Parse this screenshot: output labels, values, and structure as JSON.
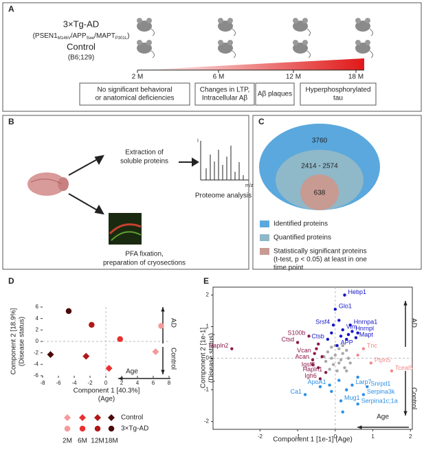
{
  "panel_a": {
    "label": "A",
    "strain": "3×Tg-AD",
    "genotype": [
      "(PSEN1",
      "M146V",
      "/APP",
      "Swe",
      "/MAPT",
      "P301L",
      ")"
    ],
    "control": "Control",
    "control_background": "(B6;129)",
    "timepoints": [
      "2 M",
      "6 M",
      "12 M",
      "18 M"
    ],
    "phenotypes": [
      [
        "No significant behavioral",
        "or anatomical deficiencies"
      ],
      [
        "Changes in LTP,",
        "Intracellular Aβ"
      ],
      [
        "Aβ plaques"
      ],
      [
        "Hyperphosphorylated",
        "tau"
      ]
    ]
  },
  "panel_b": {
    "label": "B",
    "extraction": [
      "Extraction of",
      "soluble proteins"
    ],
    "spectrum_y": "I",
    "spectrum_x": "m/z",
    "proteome": "Proteome analysis",
    "fixation": [
      "PFA fixation,",
      "preparation of cryosections"
    ]
  },
  "panel_c": {
    "label": "C",
    "identified_count": "3760",
    "quantified_count": "2414 - 2574",
    "significant_count": "638",
    "legend": [
      [
        "Identified proteins"
      ],
      [
        "Quantified proteins"
      ],
      [
        "Statistically significant proteins",
        "(t-test, p < 0.05) at least in one",
        "time point"
      ]
    ],
    "colors": [
      "#5aa8dd",
      "#8fb8c8",
      "#c79a92"
    ]
  },
  "chart_data": [
    {
      "type": "scatter",
      "label": "D",
      "xlabel": [
        "Component 1 [40.3%]",
        "(Age)"
      ],
      "ylabel": [
        "Component 2 [18.9%]",
        "(Disease status)"
      ],
      "xlim": [
        -8,
        8
      ],
      "ylim": [
        -6,
        6
      ],
      "xticks": [
        -8,
        -6,
        -4,
        -2,
        0,
        2,
        4,
        6,
        8
      ],
      "yticks": [
        -6,
        -4,
        -2,
        0,
        2,
        4,
        6
      ],
      "ages": [
        "2M",
        "6M",
        "12M",
        "18M"
      ],
      "arrow_up": "AD",
      "arrow_down": "Control",
      "arrow_left": "Age",
      "series": [
        {
          "name": "Control",
          "marker": "diamond",
          "colors": [
            "#f59a9a",
            "#e83030",
            "#b01818",
            "#4a0808"
          ],
          "x": [
            6.3,
            0.4,
            -2.5,
            -7
          ],
          "y": [
            -1.8,
            -4.7,
            -2.6,
            -2.3
          ]
        },
        {
          "name": "3×Tg-AD",
          "marker": "circle",
          "colors": [
            "#f59a9a",
            "#e83030",
            "#b01818",
            "#4a0808"
          ],
          "x": [
            7,
            1.8,
            -1.8,
            -4.7
          ],
          "y": [
            2.7,
            0.4,
            2.9,
            5.3
          ]
        }
      ]
    },
    {
      "type": "scatter",
      "label": "E",
      "xlabel": [
        "Component 1 [1e-1] (Age)"
      ],
      "ylabel": [
        "Component 2 [1e-1]",
        "(Disease status)"
      ],
      "xlim": [
        -3.25,
        2.05
      ],
      "ylim": [
        -2.25,
        2.25
      ],
      "xticks": [
        -2,
        -1,
        0,
        1,
        2
      ],
      "yticks": [
        -2,
        -1,
        0,
        1,
        2
      ],
      "arrow_up": "AD",
      "arrow_down": "Control",
      "arrow_left": "Age",
      "series": [
        {
          "color": "#a8a8a8",
          "x": [
            -0.2,
            -0.1,
            0,
            0.1,
            0.2,
            0.3,
            -0.25,
            -0.05,
            0.15,
            0.35,
            -0.15,
            0.05,
            0.25,
            0.4,
            -0.3,
            0,
            0.2,
            -0.1,
            0.1,
            0.3
          ],
          "y": [
            0.2,
            0.35,
            0.1,
            0.3,
            0.15,
            0.25,
            -0.1,
            -0.2,
            -0.05,
            0,
            -0.35,
            -0.4,
            -0.3,
            -0.15,
            0.05,
            0.4,
            0.4,
            0,
            -0.15,
            -0.4
          ],
          "labels": [
            null,
            null,
            null,
            null,
            null,
            null,
            null,
            null,
            null,
            null,
            null,
            null,
            null,
            null,
            null,
            null,
            null,
            null,
            null,
            null
          ]
        },
        {
          "color": "#1515c8",
          "x": [
            0.25,
            0,
            -0.05,
            0.2,
            0.4,
            0.45,
            0.55,
            -0.2,
            0.05,
            0.15,
            0.3,
            -0.1,
            0.35,
            0.1,
            0.6
          ],
          "y": [
            2,
            1.55,
            1.05,
            0.9,
            1.05,
            0.85,
            0.65,
            0.6,
            0.4,
            0.7,
            0.6,
            0.8,
            0.75,
            1.2,
            0.8
          ],
          "labels": [
            "Hebp1",
            "Glo1",
            "Srsf4",
            "Vim",
            "Hnrnpa1",
            "Hnrnpl",
            "Mapt",
            "Ctsb",
            "APP",
            null,
            null,
            null,
            null,
            null,
            null
          ]
        },
        {
          "color": "#8b1a4a",
          "x": [
            -0.7,
            -1,
            -2.75,
            -0.55,
            -0.6,
            -0.45,
            -0.25,
            -0.4,
            -0.5,
            -0.35,
            -0.6,
            -0.45
          ],
          "y": [
            0.7,
            0.5,
            0.3,
            0.15,
            -0.05,
            -0.3,
            -0.45,
            -0.65,
            0.3,
            0.05,
            -0.2,
            0.45
          ],
          "labels": [
            "S100b",
            "Ctsd",
            "Hapln2",
            "Vcan",
            "Acan",
            "Igsf8",
            "Hapln1",
            "Igh6",
            null,
            null,
            null,
            null
          ]
        },
        {
          "color": "#f28a8a",
          "x": [
            0.75,
            0.95,
            1.5,
            0.6
          ],
          "y": [
            0.3,
            -0.15,
            -0.4,
            0.1
          ],
          "labels": [
            "Tnc",
            "Ptpn5",
            "Tceal5",
            null
          ]
        },
        {
          "color": "#2b8fe6",
          "x": [
            -0.15,
            0.45,
            0.85,
            0.75,
            0.6,
            0.15,
            -0.8,
            0.1,
            0.3,
            -0.4,
            0.6,
            0.2,
            -0.1
          ],
          "y": [
            -0.85,
            -0.85,
            -0.9,
            -1.15,
            -1.45,
            -1.35,
            -1.15,
            -0.7,
            -1,
            -0.9,
            -0.6,
            -1.7,
            -1.05
          ],
          "labels": [
            "ApoA1",
            "Larp7",
            "Snrpd1",
            "Serpina3k",
            "Serpina1c;1a",
            "Mug1",
            "Ca1",
            null,
            null,
            null,
            null,
            null,
            null
          ]
        }
      ]
    }
  ]
}
